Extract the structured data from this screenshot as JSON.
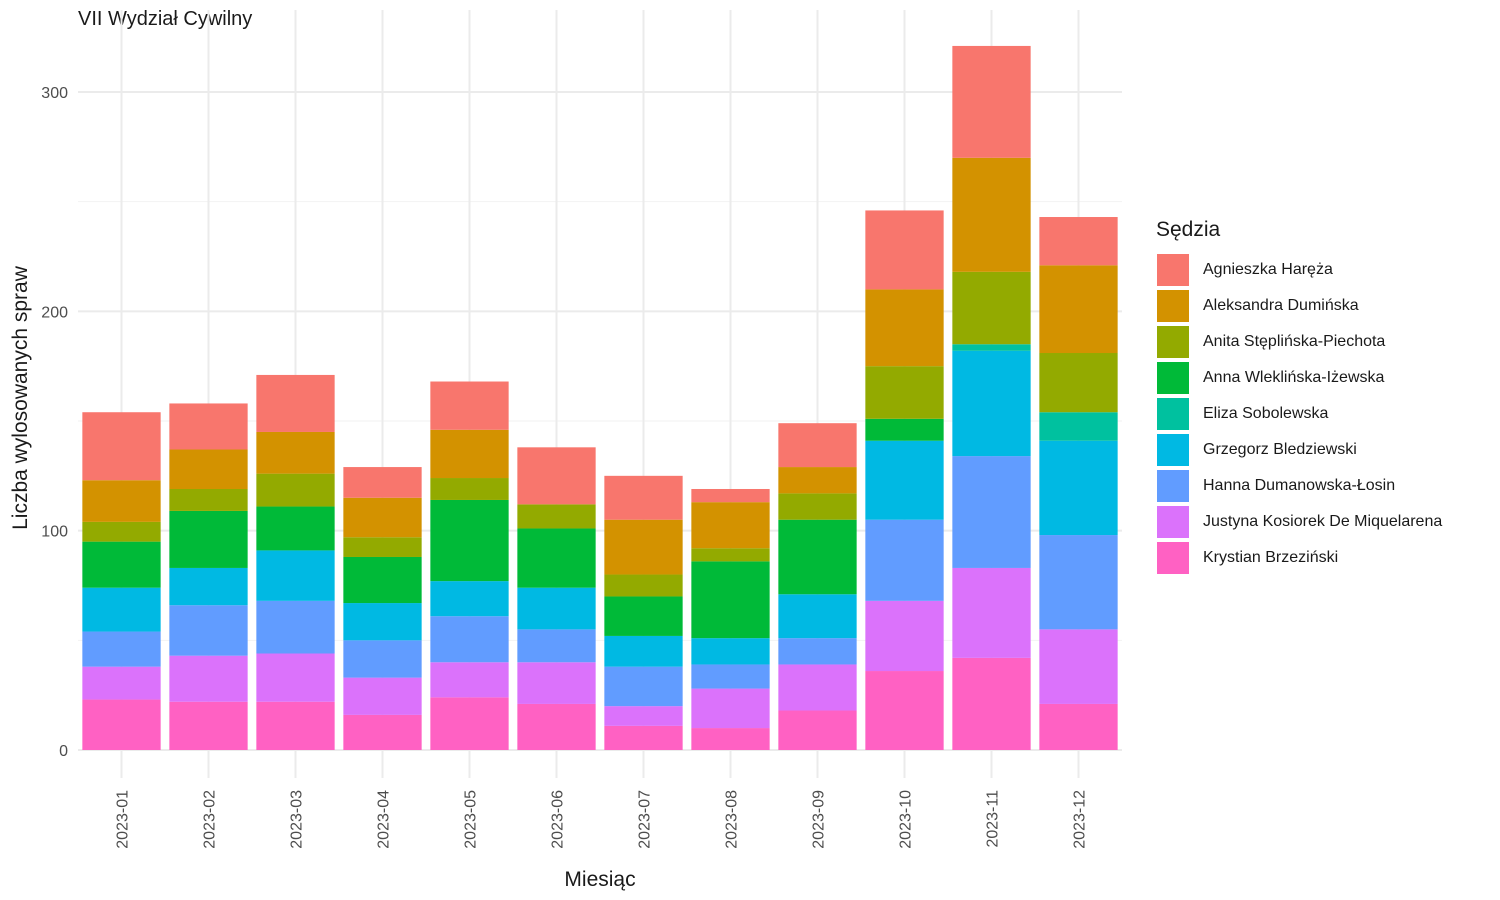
{
  "chart_data": {
    "type": "bar",
    "stacked": true,
    "title": "VII Wydział Cywilny",
    "xlabel": "Miesiąc",
    "ylabel": "Liczba wylosowanych spraw",
    "ylim": [
      0,
      330
    ],
    "yticks": [
      0,
      100,
      200,
      300
    ],
    "grid": true,
    "legend_title": "Sędzia",
    "legend_position": "right",
    "categories": [
      "2023-01",
      "2023-02",
      "2023-03",
      "2023-04",
      "2023-05",
      "2023-06",
      "2023-07",
      "2023-08",
      "2023-09",
      "2023-10",
      "2023-11",
      "2023-12"
    ],
    "series": [
      {
        "name": "Agnieszka Haręża",
        "color": "#F8766D",
        "values": [
          31,
          21,
          26,
          14,
          22,
          26,
          20,
          6,
          20,
          36,
          51,
          22
        ]
      },
      {
        "name": "Aleksandra Dumińska",
        "color": "#D39200",
        "values": [
          19,
          18,
          19,
          18,
          22,
          0,
          25,
          21,
          12,
          35,
          52,
          40
        ]
      },
      {
        "name": "Anita Stęplińska-Piechota",
        "color": "#93AA00",
        "values": [
          9,
          10,
          15,
          9,
          10,
          11,
          10,
          6,
          12,
          24,
          33,
          27
        ]
      },
      {
        "name": "Anna Wleklińska-Iżewska",
        "color": "#00BA38",
        "values": [
          21,
          26,
          20,
          21,
          37,
          27,
          18,
          35,
          34,
          10,
          0,
          0
        ]
      },
      {
        "name": "Eliza Sobolewska",
        "color": "#00C19F",
        "values": [
          0,
          0,
          0,
          0,
          0,
          0,
          0,
          0,
          0,
          0,
          3,
          13
        ]
      },
      {
        "name": "Grzegorz Bledziewski",
        "color": "#00B9E3",
        "values": [
          20,
          17,
          23,
          17,
          16,
          19,
          14,
          12,
          20,
          36,
          48,
          43
        ]
      },
      {
        "name": "Hanna Dumanowska-Łosin",
        "color": "#619CFF",
        "values": [
          16,
          23,
          24,
          17,
          21,
          15,
          18,
          11,
          12,
          37,
          51,
          43
        ]
      },
      {
        "name": "Justyna Kosiorek De Miquelarena",
        "color": "#DB72FB",
        "values": [
          15,
          21,
          22,
          17,
          16,
          19,
          9,
          18,
          21,
          32,
          41,
          34
        ]
      },
      {
        "name": "Krystian Brzeziński",
        "color": "#FF61C3",
        "values": [
          23,
          22,
          22,
          16,
          24,
          21,
          11,
          10,
          18,
          36,
          42,
          21
        ]
      }
    ]
  }
}
